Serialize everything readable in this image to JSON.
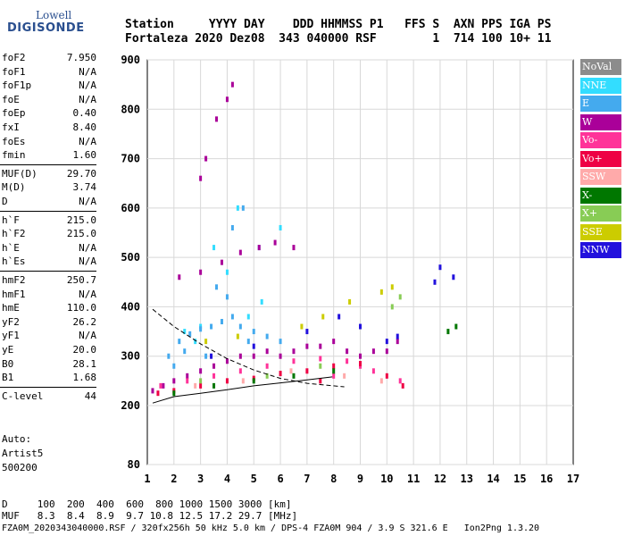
{
  "logo": {
    "top": "Lowell",
    "bottom": "DIGISONDE"
  },
  "header": {
    "line1": "Station     YYYY DAY    DDD HHMMSS P1   FFS S  AXN PPS IGA PS",
    "line2": "Fortaleza 2020 Dez08  343 040000 RSF        1  714 100 10+ 11"
  },
  "params_block1": [
    {
      "label": "foF2",
      "value": "7.950"
    },
    {
      "label": "foF1",
      "value": "N/A"
    },
    {
      "label": "foF1p",
      "value": "N/A"
    },
    {
      "label": "foE",
      "value": "N/A"
    },
    {
      "label": "foEp",
      "value": "0.40"
    },
    {
      "label": "fxI",
      "value": "8.40"
    },
    {
      "label": "foEs",
      "value": "N/A"
    },
    {
      "label": "fmin",
      "value": "1.60"
    }
  ],
  "params_block2": [
    {
      "label": "MUF(D)",
      "value": "29.70"
    },
    {
      "label": "M(D)",
      "value": "3.74"
    },
    {
      "label": "D",
      "value": "N/A"
    }
  ],
  "params_block3": [
    {
      "label": "h`F",
      "value": "215.0"
    },
    {
      "label": "h`F2",
      "value": "215.0"
    },
    {
      "label": "h`E",
      "value": "N/A"
    },
    {
      "label": "h`Es",
      "value": "N/A"
    }
  ],
  "params_block4": [
    {
      "label": "hmF2",
      "value": "250.7"
    },
    {
      "label": "hmF1",
      "value": "N/A"
    },
    {
      "label": "hmE",
      "value": "110.0"
    },
    {
      "label": "yF2",
      "value": "26.2"
    },
    {
      "label": "yF1",
      "value": "N/A"
    },
    {
      "label": "yE",
      "value": "20.0"
    },
    {
      "label": "B0",
      "value": "28.1"
    },
    {
      "label": "B1",
      "value": "1.68"
    }
  ],
  "params_block5": [
    {
      "label": "C-level",
      "value": "44"
    }
  ],
  "auto": {
    "line1": "Auto:",
    "line2": "Artist5",
    "line3": "500200"
  },
  "legend": [
    {
      "label": "NoVal",
      "color": "#8c8c8c"
    },
    {
      "label": "NNE",
      "color": "#33ddff"
    },
    {
      "label": "E",
      "color": "#44aaee"
    },
    {
      "label": "W",
      "color": "#aa0099"
    },
    {
      "label": "Vo-",
      "color": "#ff3399"
    },
    {
      "label": "Vo+",
      "color": "#ee0044"
    },
    {
      "label": "SSW",
      "color": "#ffaaaa"
    },
    {
      "label": "X-",
      "color": "#007700"
    },
    {
      "label": "X+",
      "color": "#88cc55"
    },
    {
      "label": "SSE",
      "color": "#cccc00"
    },
    {
      "label": "NNW",
      "color": "#2211dd"
    }
  ],
  "footer": {
    "line1": "D     100  200  400  600  800 1000 1500 3000 [km]",
    "line2": "MUF   8.3  8.4  8.9  9.7 10.8 12.5 17.2 29.7 [MHz]",
    "line3": "FZA0M_2020343040000.RSF / 320fx256h 50 kHz 5.0 km / DPS-4 FZA0M 904 / 3.9 S 321.6 E   Ion2Png 1.3.20"
  },
  "chart_data": {
    "type": "scatter",
    "title": "",
    "xlabel": "",
    "ylabel": "",
    "xlim": [
      1,
      17
    ],
    "ylim": [
      80,
      900
    ],
    "x_ticks": [
      1,
      2,
      3,
      4,
      5,
      6,
      7,
      8,
      9,
      10,
      11,
      12,
      13,
      14,
      15,
      16,
      17
    ],
    "y_ticks": [
      80,
      200,
      300,
      400,
      500,
      600,
      700,
      800,
      900
    ],
    "grid": true,
    "legend_placement": "right",
    "series": [
      {
        "name": "NNE",
        "color": "#33ddff",
        "points": [
          [
            2.4,
            350
          ],
          [
            3.0,
            360
          ],
          [
            3.5,
            520
          ],
          [
            4.0,
            470
          ],
          [
            4.4,
            600
          ],
          [
            4.8,
            380
          ],
          [
            5.3,
            410
          ],
          [
            6.0,
            560
          ],
          [
            2.8,
            330
          ]
        ]
      },
      {
        "name": "E",
        "color": "#44aaee",
        "points": [
          [
            1.8,
            300
          ],
          [
            2.2,
            330
          ],
          [
            2.6,
            345
          ],
          [
            3.0,
            355
          ],
          [
            3.4,
            360
          ],
          [
            3.8,
            370
          ],
          [
            4.2,
            380
          ],
          [
            4.5,
            360
          ],
          [
            5.0,
            350
          ],
          [
            5.5,
            340
          ],
          [
            6.0,
            330
          ],
          [
            4.0,
            420
          ],
          [
            3.6,
            440
          ],
          [
            4.2,
            560
          ],
          [
            4.6,
            600
          ],
          [
            5.2,
            520
          ],
          [
            2.4,
            310
          ],
          [
            3.2,
            300
          ],
          [
            2.0,
            280
          ],
          [
            4.8,
            330
          ]
        ]
      },
      {
        "name": "W",
        "color": "#aa0099",
        "points": [
          [
            1.2,
            230
          ],
          [
            1.6,
            240
          ],
          [
            2.0,
            250
          ],
          [
            2.5,
            260
          ],
          [
            3.0,
            270
          ],
          [
            3.5,
            280
          ],
          [
            4.0,
            290
          ],
          [
            4.5,
            300
          ],
          [
            5.0,
            300
          ],
          [
            5.5,
            310
          ],
          [
            6.0,
            300
          ],
          [
            6.5,
            310
          ],
          [
            7.0,
            320
          ],
          [
            7.5,
            320
          ],
          [
            8.0,
            330
          ],
          [
            8.5,
            310
          ],
          [
            9.0,
            300
          ],
          [
            9.5,
            310
          ],
          [
            10.0,
            310
          ],
          [
            10.4,
            330
          ],
          [
            2.2,
            460
          ],
          [
            3.0,
            470
          ],
          [
            3.8,
            490
          ],
          [
            4.5,
            510
          ],
          [
            5.2,
            520
          ],
          [
            5.8,
            530
          ],
          [
            6.5,
            520
          ],
          [
            3.6,
            780
          ],
          [
            4.0,
            820
          ],
          [
            4.2,
            850
          ],
          [
            3.2,
            700
          ],
          [
            3.0,
            660
          ]
        ]
      },
      {
        "name": "Vo-",
        "color": "#ff3399",
        "points": [
          [
            1.5,
            240
          ],
          [
            2.5,
            250
          ],
          [
            3.5,
            260
          ],
          [
            4.5,
            270
          ],
          [
            5.5,
            280
          ],
          [
            6.5,
            290
          ],
          [
            7.5,
            295
          ],
          [
            8.5,
            290
          ],
          [
            9.5,
            270
          ],
          [
            10.5,
            250
          ],
          [
            8.0,
            260
          ],
          [
            9.0,
            280
          ]
        ]
      },
      {
        "name": "Vo+",
        "color": "#ee0044",
        "points": [
          [
            1.4,
            225
          ],
          [
            2.0,
            230
          ],
          [
            3.0,
            240
          ],
          [
            4.0,
            250
          ],
          [
            5.0,
            255
          ],
          [
            6.0,
            265
          ],
          [
            7.0,
            270
          ],
          [
            8.0,
            280
          ],
          [
            9.0,
            285
          ],
          [
            10.0,
            260
          ],
          [
            10.6,
            240
          ],
          [
            7.5,
            250
          ]
        ]
      },
      {
        "name": "SSW",
        "color": "#ffaaaa",
        "points": [
          [
            2.8,
            240
          ],
          [
            4.6,
            250
          ],
          [
            6.4,
            270
          ],
          [
            8.4,
            260
          ],
          [
            9.8,
            250
          ]
        ]
      },
      {
        "name": "X-",
        "color": "#007700",
        "points": [
          [
            2.0,
            225
          ],
          [
            3.5,
            240
          ],
          [
            5.0,
            250
          ],
          [
            6.5,
            260
          ],
          [
            8.0,
            270
          ],
          [
            12.3,
            350
          ],
          [
            12.6,
            360
          ]
        ]
      },
      {
        "name": "X+",
        "color": "#88cc55",
        "points": [
          [
            3.0,
            250
          ],
          [
            5.5,
            260
          ],
          [
            7.5,
            280
          ],
          [
            10.2,
            400
          ],
          [
            10.5,
            420
          ]
        ]
      },
      {
        "name": "SSE",
        "color": "#cccc00",
        "points": [
          [
            3.2,
            330
          ],
          [
            4.4,
            340
          ],
          [
            6.8,
            360
          ],
          [
            7.6,
            380
          ],
          [
            9.8,
            430
          ],
          [
            10.2,
            440
          ],
          [
            8.6,
            410
          ]
        ]
      },
      {
        "name": "NNW",
        "color": "#2211dd",
        "points": [
          [
            3.4,
            300
          ],
          [
            5.0,
            320
          ],
          [
            7.0,
            350
          ],
          [
            8.2,
            380
          ],
          [
            9.0,
            360
          ],
          [
            10.0,
            330
          ],
          [
            10.4,
            340
          ],
          [
            11.8,
            450
          ],
          [
            12.0,
            480
          ],
          [
            12.5,
            460
          ]
        ]
      }
    ],
    "profile_curve": [
      [
        1.2,
        205
      ],
      [
        2.0,
        218
      ],
      [
        3.0,
        225
      ],
      [
        4.0,
        232
      ],
      [
        5.0,
        240
      ],
      [
        6.0,
        246
      ],
      [
        7.0,
        252
      ],
      [
        7.95,
        258
      ]
    ],
    "dashed_curve": [
      [
        1.2,
        395
      ],
      [
        2.0,
        360
      ],
      [
        3.0,
        325
      ],
      [
        4.0,
        295
      ],
      [
        5.0,
        272
      ],
      [
        6.0,
        255
      ],
      [
        7.0,
        245
      ],
      [
        8.4,
        238
      ]
    ]
  }
}
